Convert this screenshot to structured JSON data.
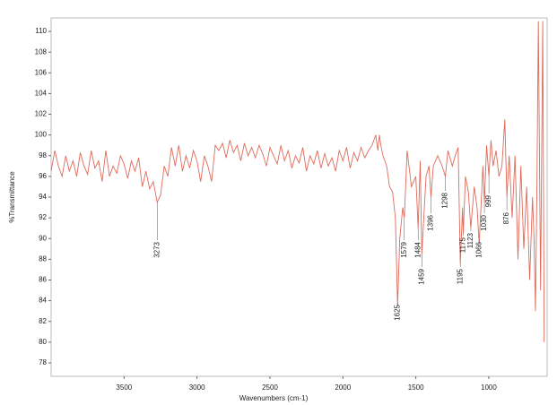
{
  "chart_data": {
    "type": "line",
    "xlabel": "Wavenumbers (cm-1)",
    "ylabel": "%Transmittance",
    "xlim": [
      4000,
      600
    ],
    "ylim": [
      76.7,
      111.3
    ],
    "xticks": [
      3500,
      3000,
      2500,
      2000,
      1500,
      1000
    ],
    "yticks": [
      78,
      80,
      82,
      84,
      86,
      88,
      90,
      92,
      94,
      96,
      98,
      100,
      102,
      104,
      106,
      108,
      110
    ],
    "series": [
      {
        "color": "#e06a5a",
        "x": [
          4000,
          3975,
          3950,
          3925,
          3900,
          3875,
          3850,
          3825,
          3800,
          3775,
          3750,
          3725,
          3700,
          3675,
          3650,
          3625,
          3600,
          3575,
          3550,
          3525,
          3500,
          3475,
          3450,
          3425,
          3400,
          3375,
          3350,
          3325,
          3300,
          3273,
          3250,
          3225,
          3200,
          3175,
          3150,
          3125,
          3100,
          3075,
          3050,
          3025,
          3000,
          2975,
          2950,
          2925,
          2900,
          2875,
          2850,
          2825,
          2800,
          2775,
          2750,
          2725,
          2700,
          2675,
          2650,
          2625,
          2600,
          2575,
          2550,
          2525,
          2500,
          2475,
          2450,
          2425,
          2400,
          2375,
          2350,
          2325,
          2300,
          2275,
          2250,
          2225,
          2200,
          2175,
          2150,
          2125,
          2100,
          2075,
          2050,
          2025,
          2000,
          1975,
          1950,
          1925,
          1900,
          1875,
          1850,
          1825,
          1800,
          1775,
          1760,
          1750,
          1740,
          1725,
          1700,
          1680,
          1660,
          1640,
          1625,
          1610,
          1590,
          1579,
          1560,
          1530,
          1500,
          1484,
          1470,
          1459,
          1430,
          1410,
          1396,
          1380,
          1350,
          1320,
          1298,
          1280,
          1250,
          1230,
          1210,
          1195,
          1180,
          1175,
          1160,
          1140,
          1123,
          1100,
          1080,
          1066,
          1050,
          1040,
          1030,
          1015,
          999,
          985,
          970,
          950,
          930,
          910,
          890,
          876,
          860,
          840,
          820,
          800,
          780,
          760,
          740,
          720,
          700,
          690,
          680,
          670,
          660,
          645,
          630,
          620
        ],
        "values": [
          96.5,
          98.5,
          97,
          96,
          98,
          96.5,
          97.5,
          96,
          98.3,
          97,
          96.2,
          98.5,
          96.8,
          97.5,
          95.5,
          98.5,
          96,
          97,
          96.3,
          98,
          97.2,
          95.8,
          97.5,
          96.5,
          97.8,
          95,
          96.5,
          94.8,
          95.5,
          93.5,
          94.2,
          97,
          96,
          98.8,
          97,
          99,
          96.5,
          98,
          96.8,
          98.5,
          97.5,
          95.5,
          98,
          97,
          95.5,
          99,
          98.5,
          99.2,
          97.8,
          99.5,
          98.3,
          99,
          97.5,
          99.2,
          98,
          98.8,
          97.8,
          99,
          98.2,
          97,
          98.8,
          98,
          97.2,
          99,
          97.5,
          98.5,
          96.8,
          98,
          97.3,
          98.8,
          96.5,
          98,
          97.2,
          98.5,
          96.8,
          98.2,
          97,
          97.8,
          96.5,
          98.5,
          97.5,
          98.8,
          96.8,
          98.3,
          97.5,
          98.8,
          97.8,
          98.5,
          99,
          100,
          98.5,
          100,
          99,
          98,
          97,
          95,
          94.5,
          92,
          83.5,
          90,
          93,
          92,
          98.5,
          95,
          96,
          91,
          97.5,
          88.5,
          96,
          97,
          94,
          97,
          98,
          97,
          96,
          98.5,
          97,
          98,
          98.8,
          87.5,
          93,
          90.5,
          96,
          94.5,
          91,
          95,
          93,
          89.5,
          94,
          97,
          93.5,
          99,
          96,
          99.5,
          97,
          98.5,
          96,
          97,
          101.5,
          94,
          98,
          92,
          98,
          88,
          97,
          89,
          95,
          86,
          94,
          90,
          83,
          95,
          111,
          85,
          111,
          80
        ]
      }
    ],
    "peaks": [
      {
        "x": 3273,
        "y": 93.5
      },
      {
        "x": 1625,
        "y": 83.5
      },
      {
        "x": 1579,
        "y": 92
      },
      {
        "x": 1484,
        "y": 91
      },
      {
        "x": 1459,
        "y": 88.5
      },
      {
        "x": 1396,
        "y": 94
      },
      {
        "x": 1298,
        "y": 96
      },
      {
        "x": 1195,
        "y": 87.5
      },
      {
        "x": 1175,
        "y": 90.5
      },
      {
        "x": 1123,
        "y": 91
      },
      {
        "x": 1066,
        "y": 89.5
      },
      {
        "x": 1030,
        "y": 93.5
      },
      {
        "x": 999,
        "y": 96
      },
      {
        "x": 876,
        "y": 94
      }
    ]
  }
}
